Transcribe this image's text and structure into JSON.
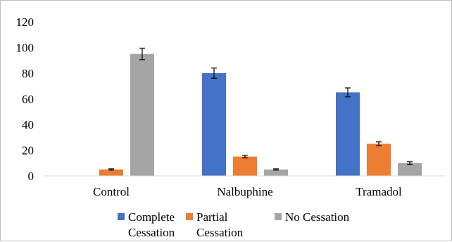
{
  "chart_data": {
    "type": "bar",
    "categories": [
      "Control",
      "Nalbuphine",
      "Tramadol"
    ],
    "series": [
      {
        "name": "Complete Cessation",
        "color": "#4472c4",
        "values": [
          0,
          80,
          65
        ],
        "errors": [
          0,
          4,
          3.5
        ]
      },
      {
        "name": "Partial Cessation",
        "color": "#ed7d31",
        "values": [
          5,
          15,
          25
        ],
        "errors": [
          0.5,
          1,
          1.5
        ]
      },
      {
        "name": "No Cessation",
        "color": "#a5a5a5",
        "values": [
          95,
          5,
          10
        ],
        "errors": [
          4.5,
          0.5,
          1
        ]
      }
    ],
    "ylim": [
      0,
      120
    ],
    "yticks": [
      0,
      20,
      40,
      60,
      80,
      100,
      120
    ],
    "grid": false,
    "legend": {
      "position": "bottom",
      "items": [
        {
          "line1": "Complete",
          "line2": "Cessation"
        },
        {
          "line1": "Partial",
          "line2": "Cessation"
        },
        {
          "line1": "No Cessation",
          "line2": ""
        }
      ]
    }
  }
}
